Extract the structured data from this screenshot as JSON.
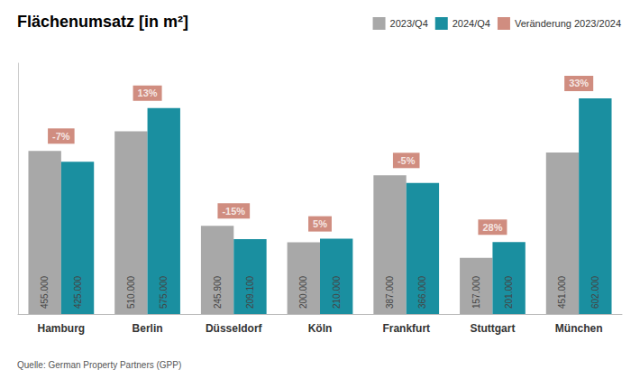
{
  "chart_data": {
    "type": "bar",
    "title": "Flächenumsatz [in m²]",
    "categories": [
      "Hamburg",
      "Berlin",
      "Düsseldorf",
      "Köln",
      "Frankfurt",
      "Stuttgart",
      "München"
    ],
    "series": [
      {
        "name": "2023/Q4",
        "color": "#a8a8a8",
        "values": [
          455000,
          510000,
          245900,
          200000,
          387000,
          157000,
          451000
        ],
        "value_labels": [
          "455.000",
          "510.000",
          "245.900",
          "200.000",
          "387.000",
          "157.000",
          "451.000"
        ]
      },
      {
        "name": "2024/Q4",
        "color": "#1a8fa0",
        "values": [
          425000,
          575000,
          209100,
          210000,
          366000,
          201000,
          602000
        ],
        "value_labels": [
          "425.000",
          "575.000",
          "209.100",
          "210.000",
          "366.000",
          "201.000",
          "602.000"
        ]
      }
    ],
    "changes": {
      "name": "Veränderung 2023/2024",
      "color": "#c47060",
      "values": [
        -7,
        13,
        -15,
        5,
        -5,
        28,
        33
      ],
      "value_labels": [
        "-7%",
        "13%",
        "-15%",
        "5%",
        "-5%",
        "28%",
        "33%"
      ]
    },
    "source": "Quelle: German Property Partners (GPP)",
    "ylim": [
      0,
      700000
    ],
    "yticks": [],
    "grid": false,
    "legend": "upper right",
    "data_labels": true,
    "tick_labels": "x"
  }
}
